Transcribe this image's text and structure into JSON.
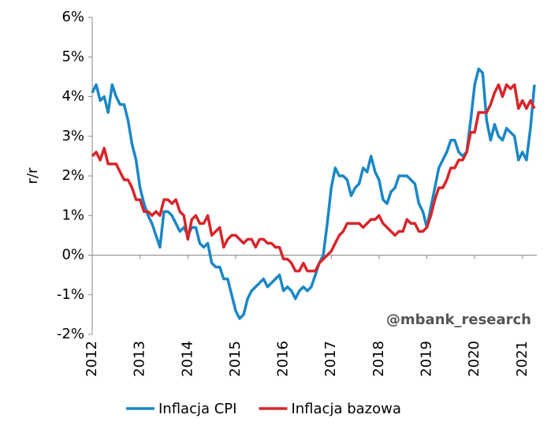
{
  "chart_data": {
    "type": "line",
    "y_label": "r/r",
    "annotation": "@mbank_research",
    "xlim": [
      2012,
      2021.3
    ],
    "xticks": [
      2012,
      2013,
      2014,
      2015,
      2016,
      2017,
      2018,
      2019,
      2020,
      2021
    ],
    "ylim": [
      -2,
      6
    ],
    "yticks": [
      {
        "value": -2,
        "label": "-2%"
      },
      {
        "value": -1,
        "label": "-1%"
      },
      {
        "value": 0,
        "label": "0%"
      },
      {
        "value": 1,
        "label": "1%"
      },
      {
        "value": 2,
        "label": "2%"
      },
      {
        "value": 3,
        "label": "3%"
      },
      {
        "value": 4,
        "label": "4%"
      },
      {
        "value": 5,
        "label": "5%"
      },
      {
        "value": 6,
        "label": "6%"
      }
    ],
    "grid": false,
    "legend": "bottom",
    "x": [
      2012,
      2012.083,
      2012.167,
      2012.25,
      2012.333,
      2012.417,
      2012.5,
      2012.583,
      2012.667,
      2012.75,
      2012.833,
      2012.917,
      2013,
      2013.083,
      2013.167,
      2013.25,
      2013.333,
      2013.417,
      2013.5,
      2013.583,
      2013.667,
      2013.75,
      2013.833,
      2013.917,
      2014,
      2014.083,
      2014.167,
      2014.25,
      2014.333,
      2014.417,
      2014.5,
      2014.583,
      2014.667,
      2014.75,
      2014.833,
      2014.917,
      2015,
      2015.083,
      2015.167,
      2015.25,
      2015.333,
      2015.417,
      2015.5,
      2015.583,
      2015.667,
      2015.75,
      2015.833,
      2015.917,
      2016,
      2016.083,
      2016.167,
      2016.25,
      2016.333,
      2016.417,
      2016.5,
      2016.583,
      2016.667,
      2016.75,
      2016.833,
      2016.917,
      2017,
      2017.083,
      2017.167,
      2017.25,
      2017.333,
      2017.417,
      2017.5,
      2017.583,
      2017.667,
      2017.75,
      2017.833,
      2017.917,
      2018,
      2018.083,
      2018.167,
      2018.25,
      2018.333,
      2018.417,
      2018.5,
      2018.583,
      2018.667,
      2018.75,
      2018.833,
      2018.917,
      2019,
      2019.083,
      2019.167,
      2019.25,
      2019.333,
      2019.417,
      2019.5,
      2019.583,
      2019.667,
      2019.75,
      2019.833,
      2019.917,
      2020,
      2020.083,
      2020.167,
      2020.25,
      2020.333,
      2020.417,
      2020.5,
      2020.583,
      2020.667,
      2020.75,
      2020.833,
      2020.917,
      2021,
      2021.083,
      2021.167,
      2021.25
    ],
    "series": [
      {
        "name": "Inflacja CPI",
        "color": "#1a87c6",
        "values": [
          4.1,
          4.3,
          3.9,
          4.0,
          3.6,
          4.3,
          4.0,
          3.8,
          3.8,
          3.4,
          2.8,
          2.4,
          1.7,
          1.3,
          1.0,
          0.8,
          0.5,
          0.2,
          1.1,
          1.1,
          1.0,
          0.8,
          0.6,
          0.7,
          0.5,
          0.7,
          0.7,
          0.3,
          0.2,
          0.3,
          -0.2,
          -0.3,
          -0.3,
          -0.6,
          -0.6,
          -1.0,
          -1.4,
          -1.6,
          -1.5,
          -1.1,
          -0.9,
          -0.8,
          -0.7,
          -0.6,
          -0.8,
          -0.7,
          -0.6,
          -0.5,
          -0.9,
          -0.8,
          -0.9,
          -1.1,
          -0.9,
          -0.8,
          -0.9,
          -0.8,
          -0.5,
          -0.2,
          0.0,
          0.8,
          1.7,
          2.2,
          2.0,
          2.0,
          1.9,
          1.5,
          1.7,
          1.8,
          2.2,
          2.1,
          2.5,
          2.1,
          1.9,
          1.4,
          1.3,
          1.6,
          1.7,
          2.0,
          2.0,
          2.0,
          1.9,
          1.8,
          1.3,
          1.1,
          0.7,
          1.2,
          1.7,
          2.2,
          2.4,
          2.6,
          2.9,
          2.9,
          2.6,
          2.5,
          2.6,
          3.4,
          4.3,
          4.7,
          4.6,
          3.4,
          2.9,
          3.3,
          3.0,
          2.9,
          3.2,
          3.1,
          3.0,
          2.4,
          2.6,
          2.4,
          3.2,
          4.3
        ]
      },
      {
        "name": "Inflacja bazowa",
        "color": "#d7262b",
        "values": [
          2.5,
          2.6,
          2.4,
          2.7,
          2.3,
          2.3,
          2.3,
          2.1,
          1.9,
          1.9,
          1.7,
          1.4,
          1.4,
          1.1,
          1.1,
          1.0,
          1.1,
          1.0,
          1.4,
          1.4,
          1.3,
          1.4,
          1.1,
          1.0,
          0.4,
          0.9,
          1.0,
          0.8,
          0.8,
          1.0,
          0.5,
          0.6,
          0.7,
          0.2,
          0.4,
          0.5,
          0.5,
          0.4,
          0.3,
          0.4,
          0.4,
          0.2,
          0.4,
          0.4,
          0.3,
          0.3,
          0.2,
          0.2,
          -0.1,
          -0.1,
          -0.2,
          -0.4,
          -0.4,
          -0.2,
          -0.4,
          -0.4,
          -0.4,
          -0.2,
          -0.1,
          0.0,
          0.1,
          0.3,
          0.5,
          0.6,
          0.8,
          0.8,
          0.8,
          0.8,
          0.7,
          0.8,
          0.9,
          0.9,
          1.0,
          0.8,
          0.7,
          0.6,
          0.5,
          0.6,
          0.6,
          0.9,
          0.8,
          0.8,
          0.6,
          0.6,
          0.7,
          1.0,
          1.4,
          1.7,
          1.7,
          1.9,
          2.2,
          2.2,
          2.4,
          2.4,
          2.6,
          3.1,
          3.1,
          3.6,
          3.6,
          3.6,
          3.8,
          4.1,
          4.3,
          4.0,
          4.3,
          4.2,
          4.3,
          3.7,
          3.9,
          3.7,
          3.9,
          3.7
        ]
      }
    ]
  }
}
